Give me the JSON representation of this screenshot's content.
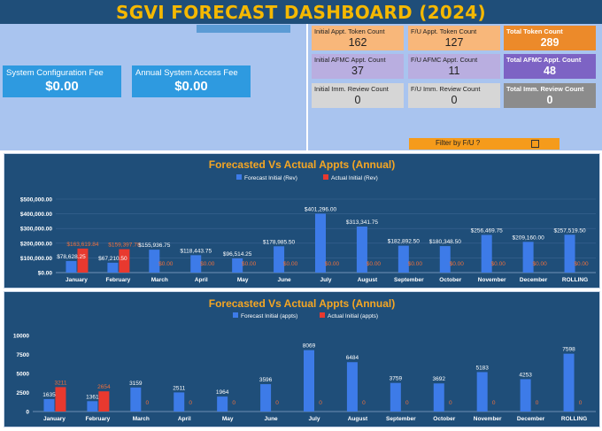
{
  "header": {
    "title": "SGVI FORECAST DASHBOARD (2024)"
  },
  "fees": [
    {
      "label": "System Configuration Fee",
      "value": "$0.00"
    },
    {
      "label": "Annual System Access Fee",
      "value": "$0.00"
    }
  ],
  "counts": {
    "initial_token": {
      "label": "Initial Appt. Token Count",
      "value": "162"
    },
    "fu_token": {
      "label": "F/U Appt. Token Count",
      "value": "127"
    },
    "total_token": {
      "label": "Total Token Count",
      "value": "289"
    },
    "initial_afmc": {
      "label": "Initial AFMC Appt. Count",
      "value": "37"
    },
    "fu_afmc": {
      "label": "F/U AFMC Appt. Count",
      "value": "11"
    },
    "total_afmc": {
      "label": "Total AFMC Appt. Count",
      "value": "48"
    },
    "initial_imm": {
      "label": "Initial Imm. Review Count",
      "value": "0"
    },
    "fu_imm": {
      "label": "F/U Imm. Review Count",
      "value": "0"
    },
    "total_imm": {
      "label": "Total Imm. Review Count",
      "value": "0"
    }
  },
  "filter": {
    "label": "Filter by F/U ?",
    "checked": false
  },
  "colors": {
    "forecast": "#3d7be8",
    "actual": "#e8392f",
    "panel": "#1f4e79",
    "title": "#f5a623",
    "label_forecast": "#ffffff",
    "label_actual": "#f0703c"
  },
  "chart_data": [
    {
      "type": "bar",
      "title": "Forecasted Vs Actual Appts (Annual)",
      "categories": [
        "January",
        "February",
        "March",
        "April",
        "May",
        "June",
        "July",
        "August",
        "September",
        "October",
        "November",
        "December",
        "ROLLING"
      ],
      "series": [
        {
          "name": "Forecast Initial (Rev)",
          "values": [
            78628.25,
            67210.5,
            155936.75,
            118443.75,
            96514.25,
            178985.5,
            401296.0,
            313341.75,
            182892.5,
            180348.5,
            256469.75,
            209160.0,
            257519.5
          ],
          "labels": [
            "$78,628.25",
            "$67,210.50",
            "$155,936.75",
            "$118,443.75",
            "$96,514.25",
            "$178,985.50",
            "$401,296.00",
            "$313,341.75",
            "$182,892.50",
            "$180,348.50",
            "$256,469.75",
            "$209,160.00",
            "$257,519.50"
          ]
        },
        {
          "name": "Actual Initial (Rev)",
          "values": [
            163619.84,
            159397.78,
            0,
            0,
            0,
            0,
            0,
            0,
            0,
            0,
            0,
            0,
            0
          ],
          "labels": [
            "$163,619.84",
            "$159,397.78",
            "$0.00",
            "$0.00",
            "$0.00",
            "$0.00",
            "$0.00",
            "$0.00",
            "$0.00",
            "$0.00",
            "$0.00",
            "$0.00",
            "$0.00"
          ]
        }
      ],
      "yticks": [
        "$0.00",
        "$100,000.00",
        "$200,000.00",
        "$300,000.00",
        "$400,000.00",
        "$500,000.00"
      ],
      "ylim": [
        0,
        500000
      ],
      "grid": true,
      "legend": "top-center"
    },
    {
      "type": "bar",
      "title": "Forecasted Vs Actual Appts (Annual)",
      "categories": [
        "January",
        "February",
        "March",
        "April",
        "May",
        "June",
        "July",
        "August",
        "September",
        "October",
        "November",
        "December",
        "ROLLING"
      ],
      "series": [
        {
          "name": "Forecast Initial (appts)",
          "values": [
            1635,
            1361,
            3159,
            2511,
            1964,
            3596,
            8069,
            6484,
            3759,
            3692,
            5183,
            4253,
            7598
          ],
          "labels": [
            "1635",
            "1361",
            "3159",
            "2511",
            "1964",
            "3596",
            "8069",
            "6484",
            "3759",
            "3692",
            "5183",
            "4253",
            "7598"
          ]
        },
        {
          "name": "Actual Initial (appts)",
          "values": [
            3211,
            2654,
            0,
            0,
            0,
            0,
            0,
            0,
            0,
            0,
            0,
            0,
            0
          ],
          "labels": [
            "3211",
            "2654",
            "0",
            "0",
            "0",
            "0",
            "0",
            "0",
            "0",
            "0",
            "0",
            "0",
            "0"
          ]
        }
      ],
      "yticks": [
        "0",
        "2500",
        "5000",
        "7500",
        "10000"
      ],
      "ylim": [
        0,
        10000
      ],
      "grid": false,
      "legend": "top-center"
    }
  ]
}
